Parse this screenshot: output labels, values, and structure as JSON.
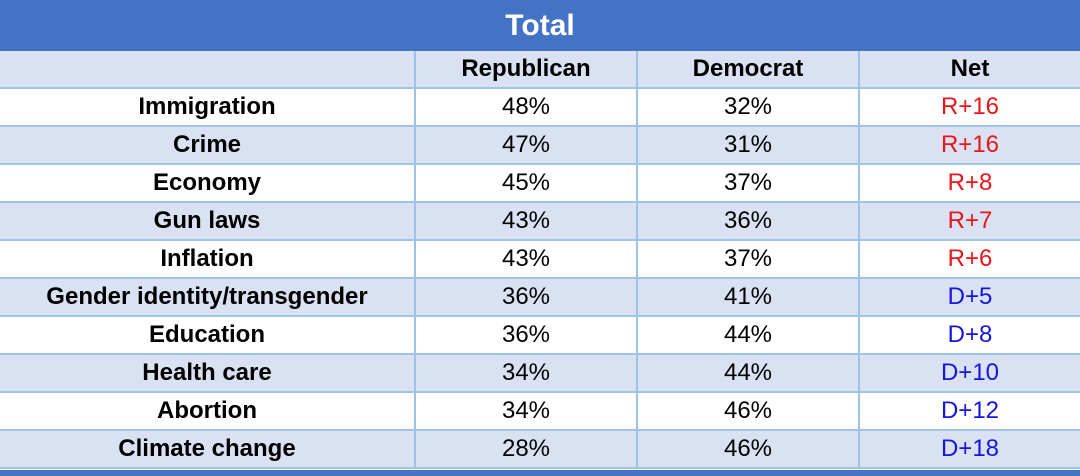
{
  "chart_data": {
    "type": "table",
    "title": "Total",
    "columns": [
      "",
      "Republican",
      "Democrat",
      "Net"
    ],
    "rows": [
      {
        "topic": "Immigration",
        "republican": "48%",
        "democrat": "32%",
        "net": "R+16",
        "net_color": "#E8161B"
      },
      {
        "topic": "Crime",
        "republican": "47%",
        "democrat": "31%",
        "net": "R+16",
        "net_color": "#E8161B"
      },
      {
        "topic": "Economy",
        "republican": "45%",
        "democrat": "37%",
        "net": "R+8",
        "net_color": "#E8161B"
      },
      {
        "topic": "Gun laws",
        "republican": "43%",
        "democrat": "36%",
        "net": "R+7",
        "net_color": "#E8161B"
      },
      {
        "topic": "Inflation",
        "republican": "43%",
        "democrat": "37%",
        "net": "R+6",
        "net_color": "#E8161B"
      },
      {
        "topic": "Gender identity/transgender",
        "republican": "36%",
        "democrat": "41%",
        "net": "D+5",
        "net_color": "#1515E0"
      },
      {
        "topic": "Education",
        "republican": "36%",
        "democrat": "44%",
        "net": "D+8",
        "net_color": "#1515E0"
      },
      {
        "topic": "Health care",
        "republican": "34%",
        "democrat": "44%",
        "net": "D+10",
        "net_color": "#1515E0"
      },
      {
        "topic": "Abortion",
        "republican": "34%",
        "democrat": "46%",
        "net": "D+12",
        "net_color": "#1515E0"
      },
      {
        "topic": "Climate change",
        "republican": "28%",
        "democrat": "46%",
        "net": "D+18",
        "net_color": "#1515E0"
      }
    ]
  },
  "colors": {
    "header_bar": "#4472C4",
    "band": "#D9E1F2",
    "grid": "#9DC3E6",
    "republican_net": "#E8161B",
    "democrat_net": "#1515E0"
  }
}
